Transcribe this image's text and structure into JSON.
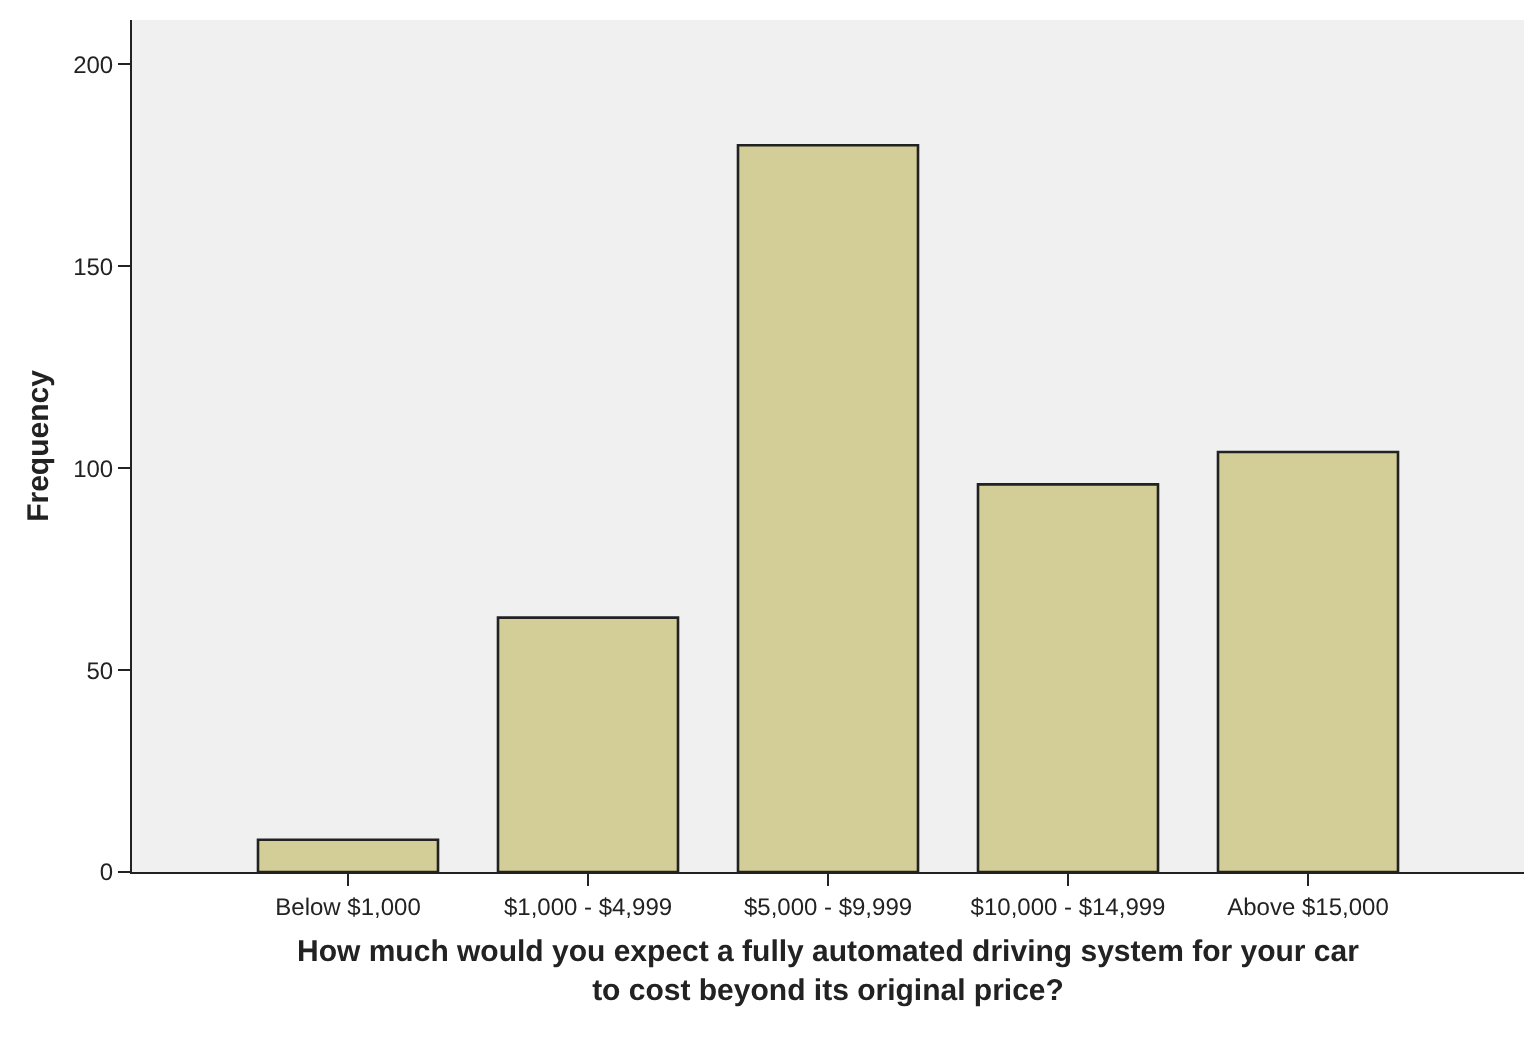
{
  "chart_data": {
    "type": "bar",
    "xlabel": "How much would you expect a fully automated driving system for your car\nto cost beyond its original price?",
    "ylabel": "Frequency",
    "categories": [
      "Below $1,000",
      "$1,000 - $4,999",
      "$5,000 - $9,999",
      "$10,000 - $14,999",
      "Above $15,000"
    ],
    "values": [
      8,
      63,
      180,
      96,
      104
    ],
    "color": "#d3ce97",
    "ylim": [
      0,
      211
    ],
    "yticks": [
      0,
      50,
      100,
      150,
      200
    ],
    "grid": false
  }
}
